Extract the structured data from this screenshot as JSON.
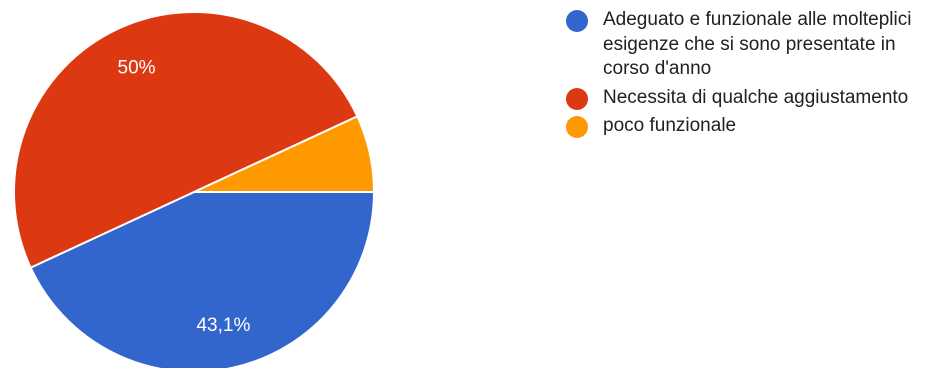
{
  "chart_data": {
    "type": "pie",
    "title": "",
    "slices": [
      {
        "label": "Adeguato e funzionale alle molteplici esigenze che si sono presentate in corso d'anno",
        "value": 43.1,
        "value_label": "43,1%",
        "color": "#3366cc"
      },
      {
        "label": "Necessita di qualche aggiustamento",
        "value": 50.0,
        "value_label": "50%",
        "color": "#dc3912"
      },
      {
        "label": "poco funzionale",
        "value": 6.9,
        "value_label": "",
        "color": "#ff9900"
      }
    ],
    "legend_position": "right"
  }
}
